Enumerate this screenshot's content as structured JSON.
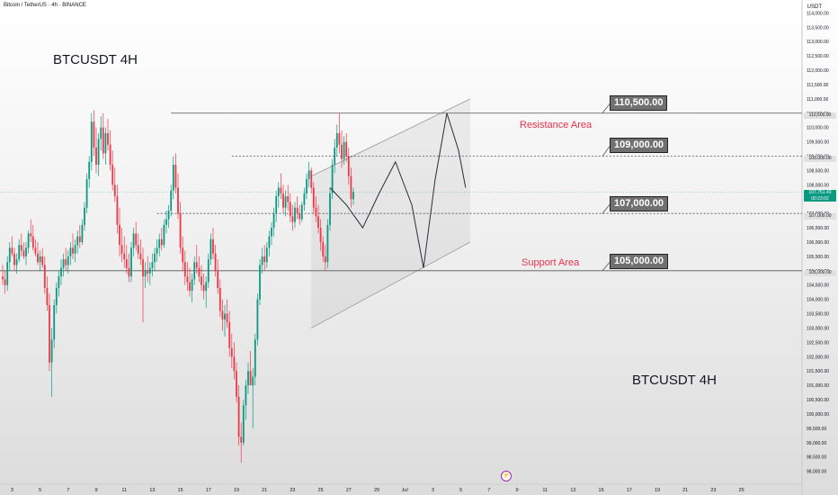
{
  "header": {
    "symbol_line": "Bitcoin / TetherUS · 4h · BINANCE"
  },
  "annotations": {
    "title_top": "BTCUSDT 4H",
    "title_bottom": "BTCUSDT 4H",
    "resistance_label": "Resistance Area",
    "support_label": "Support Area",
    "callout_110500": "110,500.00",
    "callout_109000": "109,000.00",
    "callout_107000": "107,000.00",
    "callout_105000": "105,000.00"
  },
  "price_axis": {
    "currency": "USDT",
    "tag_110500": "110,500.00",
    "tag_109000": "109,000.00",
    "tag_107000": "107,000.00",
    "tag_105000": "105,000.00",
    "last_price": "107,751.43",
    "countdown": "00:23:02"
  },
  "colors": {
    "up": "#089981",
    "down": "#f23645",
    "zone_label": "#e8334a",
    "last_price_line": "#089981"
  },
  "chart_data": {
    "type": "candlestick",
    "title": "BTCUSDT 4H",
    "symbol": "Bitcoin / TetherUS",
    "interval": "4h",
    "exchange": "BINANCE",
    "ylim": [
      97800,
      114200
    ],
    "y_ticks": [
      98000,
      98500,
      99000,
      99500,
      100000,
      100500,
      101000,
      101500,
      102000,
      102500,
      103000,
      103500,
      104000,
      104500,
      105000,
      105500,
      106000,
      106500,
      107000,
      107500,
      108000,
      108500,
      109000,
      109500,
      110000,
      110500,
      111000,
      111500,
      112000,
      112500,
      113000,
      113500,
      114000
    ],
    "x_ticks": [
      {
        "label": "3",
        "idx": 4
      },
      {
        "label": "5",
        "idx": 16
      },
      {
        "label": "7",
        "idx": 28
      },
      {
        "label": "9",
        "idx": 40
      },
      {
        "label": "11",
        "idx": 52
      },
      {
        "label": "13",
        "idx": 64
      },
      {
        "label": "15",
        "idx": 76
      },
      {
        "label": "17",
        "idx": 88
      },
      {
        "label": "19",
        "idx": 100
      },
      {
        "label": "21",
        "idx": 112
      },
      {
        "label": "23",
        "idx": 124
      },
      {
        "label": "25",
        "idx": 136
      },
      {
        "label": "27",
        "idx": 148
      },
      {
        "label": "29",
        "idx": 160
      },
      {
        "label": "Jul",
        "idx": 172
      },
      {
        "label": "3",
        "idx": 184
      },
      {
        "label": "5",
        "idx": 196
      },
      {
        "label": "7",
        "idx": 208
      },
      {
        "label": "9",
        "idx": 220
      },
      {
        "label": "11",
        "idx": 232
      },
      {
        "label": "13",
        "idx": 244
      },
      {
        "label": "15",
        "idx": 256
      },
      {
        "label": "17",
        "idx": 268
      },
      {
        "label": "19",
        "idx": 280
      },
      {
        "label": "21",
        "idx": 292
      },
      {
        "label": "23",
        "idx": 304
      },
      {
        "label": "25",
        "idx": 316
      }
    ],
    "levels": [
      {
        "name": "resistance",
        "price": 110500
      },
      {
        "name": "level_109000",
        "price": 109000
      },
      {
        "name": "level_107000",
        "price": 107000
      },
      {
        "name": "support",
        "price": 105000
      }
    ],
    "last_price": 107751.43,
    "channel": {
      "upper": [
        {
          "idx": 132,
          "price": 108300
        },
        {
          "idx": 200,
          "price": 111000
        }
      ],
      "lower": [
        {
          "idx": 132,
          "price": 103000
        },
        {
          "idx": 200,
          "price": 106000
        }
      ]
    },
    "wave_path": [
      {
        "idx": 140,
        "price": 107900
      },
      {
        "idx": 147,
        "price": 107300
      },
      {
        "idx": 154,
        "price": 106500
      },
      {
        "idx": 161,
        "price": 107700
      },
      {
        "idx": 168,
        "price": 108800
      },
      {
        "idx": 175,
        "price": 107300
      },
      {
        "idx": 180,
        "price": 105100
      },
      {
        "idx": 185,
        "price": 108200
      },
      {
        "idx": 190,
        "price": 110500
      },
      {
        "idx": 195,
        "price": 109200
      },
      {
        "idx": 198,
        "price": 107900
      }
    ],
    "candles_ohlc": [
      [
        104800,
        105200,
        104500,
        104700
      ],
      [
        104700,
        105000,
        104200,
        104500
      ],
      [
        104500,
        105500,
        104300,
        105300
      ],
      [
        105300,
        106000,
        105000,
        105800
      ],
      [
        105800,
        106200,
        105500,
        105600
      ],
      [
        105600,
        105800,
        105000,
        105200
      ],
      [
        105200,
        105600,
        104900,
        105400
      ],
      [
        105400,
        106100,
        105300,
        105900
      ],
      [
        105900,
        106300,
        105500,
        105700
      ],
      [
        105700,
        106000,
        105400,
        105500
      ],
      [
        105500,
        106000,
        105200,
        105800
      ],
      [
        105800,
        106400,
        105600,
        106300
      ],
      [
        106300,
        106800,
        106000,
        106200
      ],
      [
        106200,
        106600,
        105700,
        105800
      ],
      [
        105800,
        106100,
        105500,
        105600
      ],
      [
        105600,
        106000,
        105200,
        105300
      ],
      [
        105300,
        105700,
        105000,
        105500
      ],
      [
        105500,
        105800,
        105100,
        105200
      ],
      [
        105200,
        105500,
        104200,
        104400
      ],
      [
        104400,
        104800,
        103600,
        103800
      ],
      [
        103800,
        104200,
        101500,
        101800
      ],
      [
        101800,
        103000,
        100600,
        102600
      ],
      [
        102600,
        104000,
        102300,
        103800
      ],
      [
        103800,
        104600,
        103500,
        104400
      ],
      [
        104400,
        105000,
        104100,
        104800
      ],
      [
        104800,
        105400,
        104500,
        105100
      ],
      [
        105100,
        105600,
        104800,
        105400
      ],
      [
        105400,
        105800,
        105000,
        105200
      ],
      [
        105200,
        105700,
        104900,
        105500
      ],
      [
        105500,
        106000,
        105200,
        105800
      ],
      [
        105800,
        106300,
        105400,
        105600
      ],
      [
        105600,
        106100,
        105300,
        105900
      ],
      [
        105900,
        106400,
        105600,
        106200
      ],
      [
        106200,
        106600,
        105800,
        106000
      ],
      [
        106000,
        106800,
        105900,
        106600
      ],
      [
        106600,
        107400,
        106400,
        107200
      ],
      [
        107200,
        108400,
        107000,
        108200
      ],
      [
        108200,
        109000,
        107900,
        108800
      ],
      [
        108800,
        110500,
        108500,
        110200
      ],
      [
        110200,
        110600,
        109000,
        109300
      ],
      [
        109300,
        110000,
        108400,
        108700
      ],
      [
        108700,
        109800,
        108300,
        109600
      ],
      [
        109600,
        110400,
        109200,
        110000
      ],
      [
        110000,
        110500,
        108900,
        109100
      ],
      [
        109100,
        110000,
        108700,
        109800
      ],
      [
        109800,
        110300,
        109200,
        109400
      ],
      [
        109400,
        109900,
        108500,
        108700
      ],
      [
        108700,
        109200,
        107800,
        108000
      ],
      [
        108000,
        108600,
        107400,
        107600
      ],
      [
        107600,
        108000,
        106300,
        106600
      ],
      [
        106600,
        107200,
        105500,
        105900
      ],
      [
        105900,
        106500,
        105300,
        105600
      ],
      [
        105600,
        106200,
        105100,
        105400
      ],
      [
        105400,
        105900,
        104900,
        105100
      ],
      [
        105100,
        105600,
        104600,
        104800
      ],
      [
        104800,
        106000,
        104600,
        105800
      ],
      [
        105800,
        106500,
        105500,
        106300
      ],
      [
        106300,
        106700,
        105700,
        105900
      ],
      [
        105900,
        106300,
        105400,
        105600
      ],
      [
        105600,
        106100,
        105200,
        105400
      ],
      [
        105400,
        105800,
        103200,
        104800
      ],
      [
        104800,
        105300,
        104400,
        105000
      ],
      [
        105000,
        105500,
        104600,
        104900
      ],
      [
        104900,
        105300,
        104500,
        105100
      ],
      [
        105100,
        105600,
        104800,
        105300
      ],
      [
        105300,
        105800,
        105000,
        105600
      ],
      [
        105600,
        106100,
        105300,
        105800
      ],
      [
        105800,
        106300,
        105500,
        106100
      ],
      [
        106100,
        106500,
        105700,
        105900
      ],
      [
        105900,
        106800,
        105800,
        106600
      ],
      [
        106600,
        107100,
        106300,
        106800
      ],
      [
        106800,
        107300,
        106500,
        107100
      ],
      [
        107100,
        108000,
        106900,
        107800
      ],
      [
        107800,
        109000,
        107500,
        108700
      ],
      [
        108700,
        109100,
        107700,
        107900
      ],
      [
        107900,
        108400,
        106800,
        107000
      ],
      [
        107000,
        107400,
        105600,
        105800
      ],
      [
        105800,
        106200,
        105000,
        105300
      ],
      [
        105300,
        105700,
        104500,
        104800
      ],
      [
        104800,
        105300,
        104300,
        104600
      ],
      [
        104600,
        105100,
        104100,
        104300
      ],
      [
        104300,
        104900,
        103900,
        104700
      ],
      [
        104700,
        105500,
        104500,
        105300
      ],
      [
        105300,
        105900,
        104900,
        105100
      ],
      [
        105100,
        105500,
        104600,
        104800
      ],
      [
        104800,
        105200,
        104300,
        104500
      ],
      [
        104500,
        104900,
        104000,
        104300
      ],
      [
        104300,
        104800,
        103700,
        104600
      ],
      [
        104600,
        105600,
        104400,
        105400
      ],
      [
        105400,
        106300,
        105200,
        106100
      ],
      [
        106100,
        106500,
        105400,
        105600
      ],
      [
        105600,
        105900,
        104800,
        105000
      ],
      [
        105000,
        105400,
        104200,
        104400
      ],
      [
        104400,
        104700,
        103400,
        103600
      ],
      [
        103600,
        104000,
        102900,
        103300
      ],
      [
        103300,
        103800,
        102700,
        103500
      ],
      [
        103500,
        104000,
        103000,
        103200
      ],
      [
        103200,
        103600,
        102000,
        102300
      ],
      [
        102300,
        102800,
        101600,
        102000
      ],
      [
        102000,
        102500,
        101200,
        101500
      ],
      [
        101500,
        101800,
        100400,
        100600
      ],
      [
        100600,
        101000,
        98900,
        99200
      ],
      [
        99200,
        99700,
        98300,
        99000
      ],
      [
        99000,
        100500,
        98900,
        100300
      ],
      [
        100300,
        101200,
        99800,
        101000
      ],
      [
        101000,
        101800,
        100700,
        101500
      ],
      [
        101500,
        102200,
        101200,
        101000
      ],
      [
        101000,
        101600,
        99500,
        101300
      ],
      [
        101300,
        102800,
        101000,
        102600
      ],
      [
        102600,
        104200,
        102400,
        104000
      ],
      [
        104000,
        105400,
        103800,
        105200
      ],
      [
        105200,
        105800,
        104900,
        105500
      ],
      [
        105500,
        105900,
        105000,
        105300
      ],
      [
        105300,
        106000,
        105100,
        105800
      ],
      [
        105800,
        106400,
        105500,
        106200
      ],
      [
        106200,
        106700,
        105900,
        106500
      ],
      [
        106500,
        107200,
        106200,
        107000
      ],
      [
        107000,
        107800,
        106700,
        107600
      ],
      [
        107600,
        108100,
        107200,
        107900
      ],
      [
        107900,
        108400,
        107500,
        107700
      ],
      [
        107700,
        108000,
        107000,
        107200
      ],
      [
        107200,
        107800,
        106900,
        107600
      ],
      [
        107600,
        108000,
        107100,
        107400
      ],
      [
        107400,
        107700,
        106700,
        106900
      ],
      [
        106900,
        107300,
        106400,
        106700
      ],
      [
        106700,
        107400,
        106500,
        107200
      ],
      [
        107200,
        107600,
        106800,
        107000
      ],
      [
        107000,
        107300,
        106600,
        106800
      ],
      [
        106800,
        107400,
        106700,
        107300
      ],
      [
        107300,
        107900,
        107100,
        107700
      ],
      [
        107700,
        108400,
        107500,
        108200
      ],
      [
        108200,
        108800,
        107900,
        108500
      ],
      [
        108500,
        108600,
        107700,
        107900
      ],
      [
        107900,
        108100,
        107000,
        107200
      ],
      [
        107200,
        107600,
        106700,
        106900
      ],
      [
        106900,
        107300,
        106300,
        106500
      ],
      [
        106500,
        106800,
        105700,
        106000
      ],
      [
        106000,
        106200,
        105300,
        105500
      ],
      [
        105500,
        105900,
        105000,
        105300
      ],
      [
        105300,
        106800,
        105100,
        106600
      ],
      [
        106600,
        107900,
        106400,
        107700
      ],
      [
        107700,
        108900,
        107500,
        108700
      ],
      [
        108700,
        109600,
        108400,
        109300
      ],
      [
        109300,
        110100,
        109000,
        109800
      ],
      [
        109800,
        110500,
        109100,
        109400
      ],
      [
        109400,
        109900,
        108600,
        108900
      ],
      [
        108900,
        109700,
        108700,
        109500
      ],
      [
        109500,
        109800,
        108800,
        109000
      ],
      [
        109000,
        109300,
        108000,
        108300
      ],
      [
        108300,
        108600,
        107200,
        107500
      ],
      [
        107500,
        107900,
        107300,
        107751
      ]
    ]
  }
}
